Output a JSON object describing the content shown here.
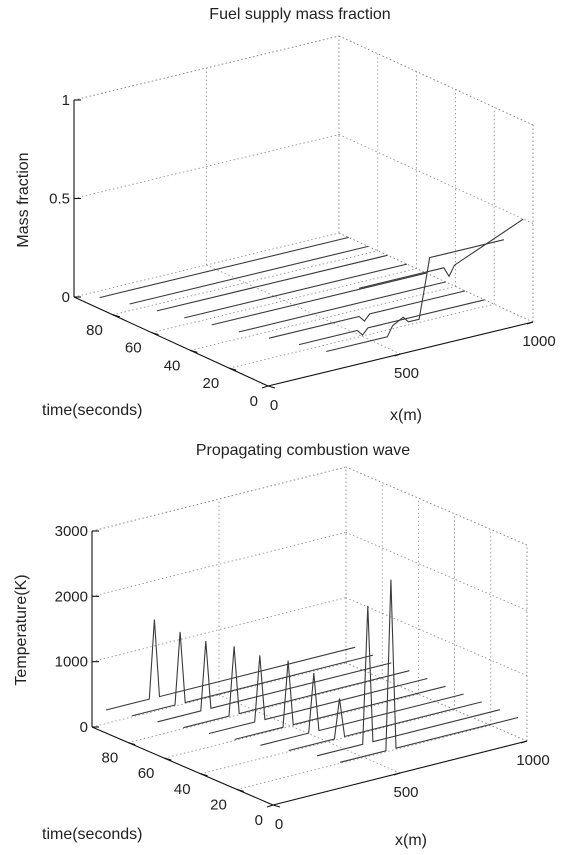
{
  "chart_data": [
    {
      "type": "line",
      "title": "Fuel supply mass fraction",
      "xlabel": "x(m)",
      "ylabel": "time(seconds)",
      "zlabel": "Mass fraction",
      "xlim": [
        0,
        1000
      ],
      "ylim": [
        0,
        100
      ],
      "zlim": [
        0,
        1
      ],
      "x_ticks": [
        "0",
        "500",
        "1000"
      ],
      "y_ticks": [
        "0",
        "20",
        "40",
        "60",
        "80"
      ],
      "z_ticks": [
        "0",
        "0.5",
        "1"
      ],
      "grid": true,
      "series": [
        {
          "t": 5,
          "points": [
            [
              380,
              0.35
            ],
            [
              700,
              0.35
            ],
            [
              720,
              0.3
            ],
            [
              740,
              0.35
            ],
            [
              1000,
              0.5
            ]
          ]
        },
        {
          "t": 15,
          "points": [
            [
              330,
              0.0
            ],
            [
              560,
              0.0
            ],
            [
              580,
              0.05
            ],
            [
              620,
              0.08
            ],
            [
              640,
              0.05
            ],
            [
              680,
              0.05
            ],
            [
              720,
              0.35
            ],
            [
              780,
              0.35
            ],
            [
              1000,
              0.35
            ]
          ]
        },
        {
          "t": 25,
          "points": [
            [
              300,
              0.0
            ],
            [
              520,
              0.0
            ],
            [
              540,
              -0.03
            ],
            [
              560,
              0.0
            ],
            [
              1000,
              0.0
            ]
          ]
        },
        {
          "t": 35,
          "points": [
            [
              260,
              0.0
            ],
            [
              600,
              0.0
            ],
            [
              620,
              -0.03
            ],
            [
              640,
              0.0
            ],
            [
              1000,
              0.0
            ]
          ]
        },
        {
          "t": 45,
          "points": [
            [
              220,
              0.0
            ],
            [
              1000,
              0.0
            ]
          ]
        },
        {
          "t": 55,
          "points": [
            [
              190,
              0.0
            ],
            [
              1000,
              0.0
            ]
          ]
        },
        {
          "t": 65,
          "points": [
            [
              160,
              0.0
            ],
            [
              1000,
              0.0
            ]
          ]
        },
        {
          "t": 75,
          "points": [
            [
              130,
              0.0
            ],
            [
              1000,
              0.0
            ]
          ]
        },
        {
          "t": 85,
          "points": [
            [
              100,
              0.0
            ],
            [
              1000,
              0.0
            ]
          ]
        },
        {
          "t": 95,
          "points": [
            [
              60,
              0.0
            ],
            [
              1000,
              0.0
            ]
          ]
        }
      ]
    },
    {
      "type": "line",
      "title": "Propagating combustion wave",
      "xlabel": "x(m)",
      "ylabel": "time(seconds)",
      "zlabel": "Temperature(K)",
      "xlim": [
        0,
        1000
      ],
      "ylim": [
        0,
        100
      ],
      "zlim": [
        0,
        3000
      ],
      "x_ticks": [
        "0",
        "500",
        "1000"
      ],
      "y_ticks": [
        "0",
        "20",
        "40",
        "60",
        "80"
      ],
      "z_ticks": [
        "0",
        "1000",
        "2000",
        "3000"
      ],
      "grid": true,
      "series": [
        {
          "t": 5,
          "points": [
            [
              300,
              300
            ],
            [
              480,
              300
            ],
            [
              500,
              2900
            ],
            [
              520,
              300
            ],
            [
              1000,
              300
            ]
          ]
        },
        {
          "t": 15,
          "points": [
            [
              280,
              300
            ],
            [
              460,
              300
            ],
            [
              480,
              2400
            ],
            [
              500,
              300
            ],
            [
              1000,
              300
            ]
          ]
        },
        {
          "t": 25,
          "points": [
            [
              240,
              300
            ],
            [
              420,
              300
            ],
            [
              440,
              900
            ],
            [
              460,
              300
            ],
            [
              1000,
              300
            ]
          ]
        },
        {
          "t": 35,
          "points": [
            [
              200,
              300
            ],
            [
              390,
              300
            ],
            [
              410,
              1200
            ],
            [
              430,
              300
            ],
            [
              1000,
              300
            ]
          ]
        },
        {
          "t": 45,
          "points": [
            [
              170,
              300
            ],
            [
              360,
              300
            ],
            [
              380,
              1300
            ],
            [
              400,
              300
            ],
            [
              1000,
              300
            ]
          ]
        },
        {
          "t": 55,
          "points": [
            [
              140,
              300
            ],
            [
              320,
              300
            ],
            [
              340,
              1300
            ],
            [
              360,
              300
            ],
            [
              1000,
              300
            ]
          ]
        },
        {
          "t": 65,
          "points": [
            [
              110,
              300
            ],
            [
              290,
              300
            ],
            [
              310,
              1350
            ],
            [
              330,
              300
            ],
            [
              1000,
              300
            ]
          ]
        },
        {
          "t": 75,
          "points": [
            [
              80,
              300
            ],
            [
              250,
              300
            ],
            [
              270,
              1350
            ],
            [
              290,
              300
            ],
            [
              1000,
              300
            ]
          ]
        },
        {
          "t": 85,
          "points": [
            [
              50,
              300
            ],
            [
              220,
              300
            ],
            [
              240,
              1400
            ],
            [
              260,
              300
            ],
            [
              1000,
              300
            ]
          ]
        },
        {
          "t": 95,
          "points": [
            [
              20,
              300
            ],
            [
              190,
              300
            ],
            [
              210,
              1500
            ],
            [
              230,
              300
            ],
            [
              1000,
              300
            ]
          ]
        }
      ]
    }
  ]
}
